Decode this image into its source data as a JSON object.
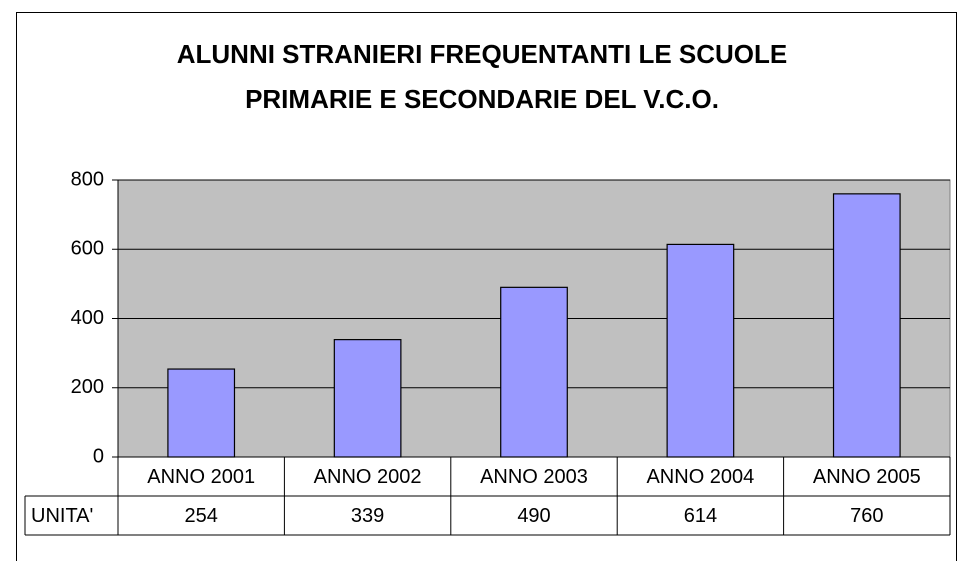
{
  "chart_data": {
    "type": "bar",
    "title": [
      "ALUNNI STRANIERI FREQUENTANTI LE SCUOLE",
      "PRIMARIE E SECONDARIE DEL V.C.O."
    ],
    "categories": [
      "ANNO 2001",
      "ANNO 2002",
      "ANNO 2003",
      "ANNO 2004",
      "ANNO 2005"
    ],
    "series": [
      {
        "name": "UNITA'",
        "color": "#9999ff",
        "values": [
          254,
          339,
          490,
          614,
          760
        ]
      }
    ],
    "ylim": [
      0,
      800
    ],
    "yticks": [
      0,
      200,
      400,
      600,
      800
    ],
    "grid": true,
    "plot_background": "#c0c0c0",
    "data_table": true
  }
}
